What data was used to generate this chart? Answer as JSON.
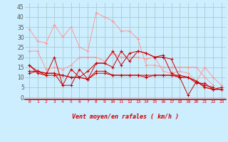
{
  "title": "",
  "xlabel": "Vent moyen/en rafales ( km/h )",
  "background_color": "#cceeff",
  "grid_color": "#aacccc",
  "x": [
    0,
    1,
    2,
    3,
    4,
    5,
    6,
    7,
    8,
    9,
    10,
    11,
    12,
    13,
    14,
    15,
    16,
    17,
    18,
    19,
    20,
    21,
    22,
    23
  ],
  "ylim": [
    -1,
    47
  ],
  "yticks": [
    0,
    5,
    10,
    15,
    20,
    25,
    30,
    35,
    40,
    45
  ],
  "series": [
    {
      "color": "#ff9999",
      "values": [
        34,
        28,
        27,
        36,
        30,
        35,
        25,
        23,
        42,
        40,
        38,
        33,
        33,
        29,
        16,
        16,
        15,
        15,
        15,
        15,
        15,
        10,
        6,
        null
      ]
    },
    {
      "color": "#ff9999",
      "values": [
        23,
        23,
        14,
        15,
        14,
        16,
        20,
        20,
        20,
        18,
        22,
        20,
        20,
        20,
        19,
        20,
        13,
        12,
        13,
        12,
        8,
        15,
        10,
        6
      ]
    },
    {
      "color": "#cc0000",
      "values": [
        16,
        12,
        11,
        20,
        6,
        6,
        14,
        9,
        17,
        17,
        23,
        16,
        22,
        23,
        22,
        20,
        21,
        12,
        10,
        1,
        8,
        6,
        5,
        null
      ]
    },
    {
      "color": "#cc0000",
      "values": [
        13,
        13,
        12,
        12,
        6,
        14,
        10,
        13,
        17,
        17,
        15,
        23,
        18,
        23,
        22,
        20,
        20,
        19,
        10,
        10,
        7,
        7,
        4,
        5
      ]
    },
    {
      "color": "#cc0000",
      "values": [
        12,
        13,
        11,
        11,
        11,
        10,
        10,
        9,
        13,
        13,
        11,
        11,
        11,
        11,
        11,
        11,
        11,
        11,
        11,
        10,
        8,
        5,
        4,
        4
      ]
    },
    {
      "color": "#cc0000",
      "values": [
        16,
        13,
        12,
        12,
        11,
        10,
        10,
        9,
        12,
        12,
        11,
        11,
        11,
        11,
        10,
        11,
        11,
        11,
        10,
        10,
        8,
        5,
        4,
        4
      ]
    }
  ],
  "arrow_symbols": [
    "↗",
    "↗",
    "↗",
    "↗",
    "↑",
    "←",
    "→",
    "↑",
    "↘",
    "↑",
    "↗",
    "↗",
    "↗",
    "↗",
    "↗",
    "↗",
    "↑",
    "↗",
    "↗",
    "↗",
    "←",
    "←",
    "↑",
    "←"
  ]
}
